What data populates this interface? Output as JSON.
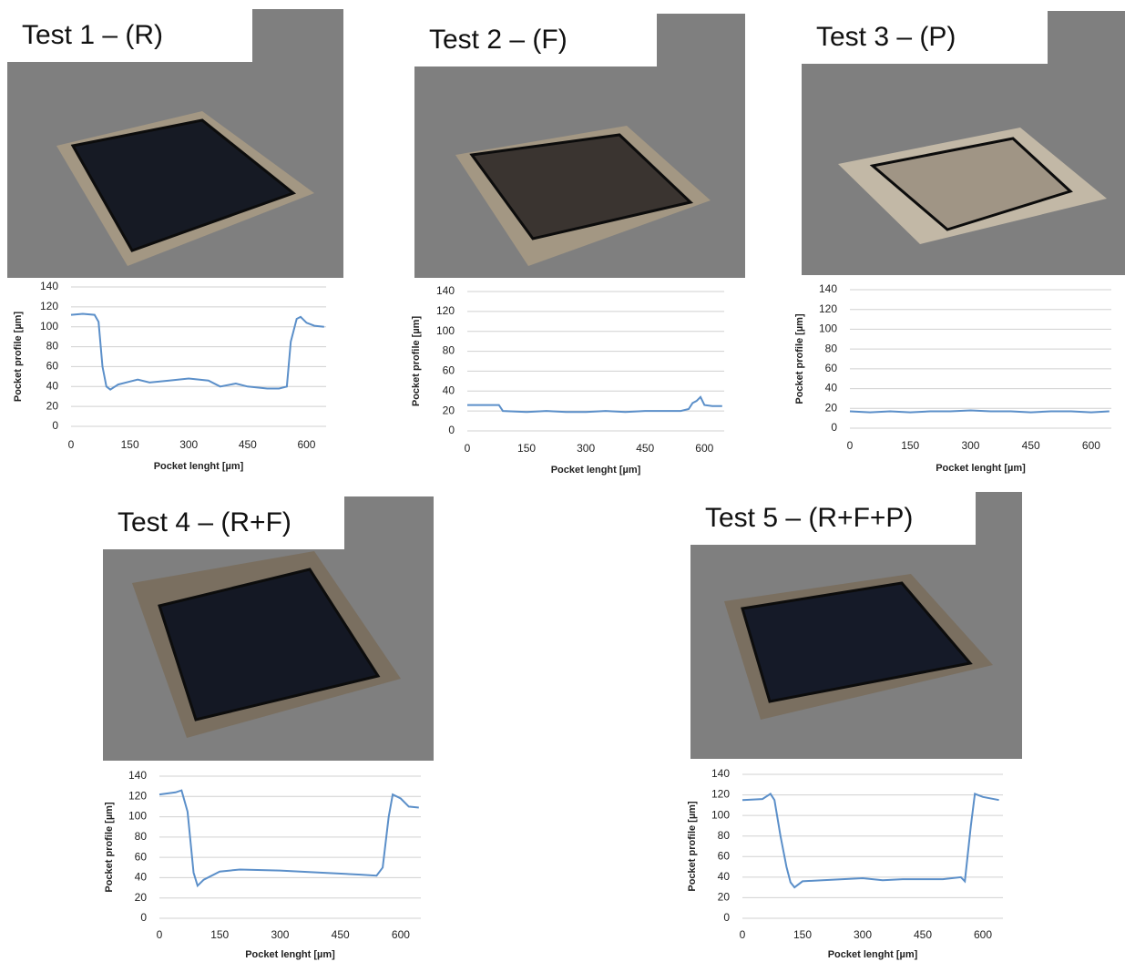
{
  "chart_data": [
    {
      "type": "line",
      "title": "Test 1 – (R)",
      "x_label": "Pocket lenght [µm]",
      "y_label": "Pocket profile [µm]",
      "xlim": [
        0,
        650
      ],
      "xticks": [
        0,
        150,
        300,
        450,
        600
      ],
      "ylim": [
        0,
        140
      ],
      "yticks": [
        0,
        20,
        40,
        60,
        80,
        100,
        120,
        140
      ],
      "grid": true,
      "series": [
        {
          "color": "#5b8fc9",
          "x": [
            0,
            30,
            60,
            70,
            80,
            90,
            100,
            120,
            150,
            170,
            200,
            250,
            300,
            350,
            380,
            420,
            450,
            500,
            530,
            550,
            560,
            575,
            585,
            600,
            620,
            645
          ],
          "values": [
            112,
            113,
            112,
            105,
            60,
            40,
            37,
            42,
            45,
            47,
            44,
            46,
            48,
            46,
            40,
            43,
            40,
            38,
            38,
            40,
            85,
            108,
            110,
            104,
            101,
            100
          ]
        }
      ]
    },
    {
      "type": "line",
      "title": "Test 2 – (F)",
      "x_label": "Pocket lenght [µm]",
      "y_label": "Pocket profile [µm]",
      "xlim": [
        0,
        650
      ],
      "xticks": [
        0,
        150,
        300,
        450,
        600
      ],
      "ylim": [
        0,
        140
      ],
      "yticks": [
        0,
        20,
        40,
        60,
        80,
        100,
        120,
        140
      ],
      "grid": true,
      "series": [
        {
          "color": "#5b8fc9",
          "x": [
            0,
            40,
            80,
            90,
            150,
            200,
            250,
            300,
            350,
            400,
            450,
            500,
            540,
            560,
            570,
            580,
            590,
            600,
            620,
            645
          ],
          "values": [
            26,
            26,
            26,
            20,
            19,
            20,
            19,
            19,
            20,
            19,
            20,
            20,
            20,
            22,
            28,
            30,
            34,
            26,
            25,
            25
          ]
        }
      ]
    },
    {
      "type": "line",
      "title": "Test 3 – (P)",
      "x_label": "Pocket lenght [µm]",
      "y_label": "Pocket profile [µm]",
      "xlim": [
        0,
        650
      ],
      "xticks": [
        0,
        150,
        300,
        450,
        600
      ],
      "ylim": [
        0,
        140
      ],
      "yticks": [
        0,
        20,
        40,
        60,
        80,
        100,
        120,
        140
      ],
      "grid": true,
      "series": [
        {
          "color": "#5b8fc9",
          "x": [
            0,
            50,
            100,
            150,
            200,
            250,
            300,
            350,
            400,
            450,
            500,
            550,
            600,
            645
          ],
          "values": [
            17,
            16,
            17,
            16,
            17,
            17,
            18,
            17,
            17,
            16,
            17,
            17,
            16,
            17
          ]
        }
      ]
    },
    {
      "type": "line",
      "title": "Test 4 – (R+F)",
      "x_label": "Pocket lenght [µm]",
      "y_label": "Pocket profile [µm]",
      "xlim": [
        0,
        650
      ],
      "xticks": [
        0,
        150,
        300,
        450,
        600
      ],
      "ylim": [
        0,
        140
      ],
      "yticks": [
        0,
        20,
        40,
        60,
        80,
        100,
        120,
        140
      ],
      "grid": true,
      "series": [
        {
          "color": "#5b8fc9",
          "x": [
            0,
            40,
            55,
            70,
            85,
            95,
            110,
            150,
            200,
            300,
            400,
            500,
            540,
            555,
            570,
            580,
            600,
            620,
            645
          ],
          "values": [
            122,
            124,
            126,
            105,
            45,
            32,
            38,
            46,
            48,
            47,
            45,
            43,
            42,
            50,
            100,
            122,
            118,
            110,
            109
          ]
        }
      ]
    },
    {
      "type": "line",
      "title": "Test 5 – (R+F+P)",
      "x_label": "Pocket lenght [µm]",
      "y_label": "Pocket profile [µm]",
      "xlim": [
        0,
        650
      ],
      "xticks": [
        0,
        150,
        300,
        450,
        600
      ],
      "ylim": [
        0,
        140
      ],
      "yticks": [
        0,
        20,
        40,
        60,
        80,
        100,
        120,
        140
      ],
      "grid": true,
      "series": [
        {
          "color": "#5b8fc9",
          "x": [
            0,
            50,
            70,
            80,
            95,
            110,
            120,
            130,
            150,
            200,
            300,
            350,
            400,
            450,
            500,
            545,
            555,
            570,
            580,
            600,
            640
          ],
          "values": [
            115,
            116,
            121,
            115,
            80,
            50,
            35,
            30,
            36,
            37,
            39,
            37,
            38,
            38,
            38,
            40,
            36,
            90,
            121,
            118,
            115
          ]
        }
      ]
    }
  ]
}
